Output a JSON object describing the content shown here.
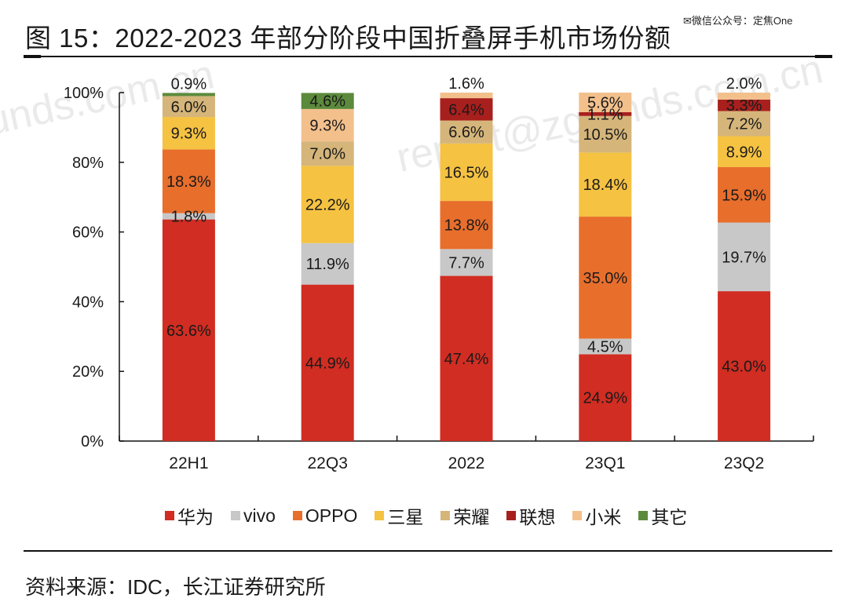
{
  "header": {
    "title": "图  15：2022-2023 年部分阶段中国折叠屏手机市场份额",
    "wechat_tag": "✉微信公众号：定焦One"
  },
  "footer": {
    "source": "资料来源：IDC，长江证券研究所"
  },
  "watermarks": [
    "unds.com.cn",
    "report@zgfunds.com.cn"
  ],
  "chart_data": {
    "type": "bar",
    "stacked": true,
    "title": "图 15：2022-2023 年部分阶段中国折叠屏手机市场份额",
    "xlabel": "",
    "ylabel": "",
    "ylim": [
      0,
      100
    ],
    "yticks": [
      0,
      20,
      40,
      60,
      80,
      100
    ],
    "ytick_labels": [
      "0%",
      "20%",
      "40%",
      "60%",
      "80%",
      "100%"
    ],
    "grid": false,
    "legend_position": "bottom",
    "categories": [
      "22H1",
      "22Q3",
      "2022",
      "23Q1",
      "23Q2"
    ],
    "series": [
      {
        "name": "华为",
        "color": "#d12d22",
        "values": [
          63.6,
          44.9,
          47.4,
          24.9,
          43.0
        ]
      },
      {
        "name": "vivo",
        "color": "#c8c8c8",
        "values": [
          1.8,
          11.9,
          7.7,
          4.5,
          19.7
        ]
      },
      {
        "name": "OPPO",
        "color": "#e86e2c",
        "values": [
          18.3,
          null,
          13.8,
          35.0,
          15.9
        ]
      },
      {
        "name": "三星",
        "color": "#f5c242",
        "values": [
          9.3,
          22.2,
          16.5,
          18.4,
          8.9
        ]
      },
      {
        "name": "荣耀",
        "color": "#d5b57a",
        "values": [
          6.0,
          7.0,
          6.6,
          10.5,
          7.2
        ]
      },
      {
        "name": "联想",
        "color": "#a8201e",
        "values": [
          null,
          null,
          6.4,
          1.1,
          3.3
        ]
      },
      {
        "name": "小米",
        "color": "#f3c08c",
        "values": [
          null,
          9.3,
          1.6,
          5.6,
          2.0
        ]
      },
      {
        "name": "其它",
        "color": "#5c8a3c",
        "values": [
          0.9,
          4.6,
          null,
          null,
          null
        ]
      }
    ],
    "value_label_format": "{v}%"
  }
}
